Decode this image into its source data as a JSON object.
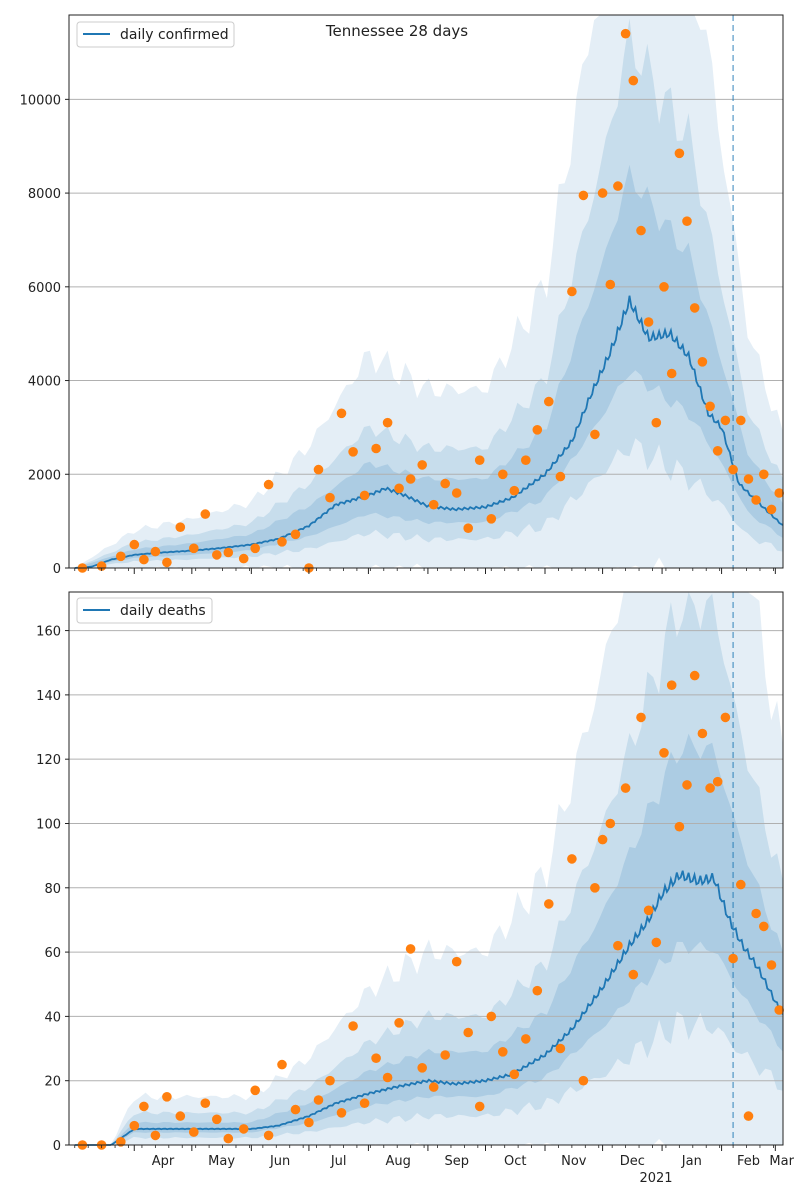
{
  "chart_data": [
    {
      "type": "line",
      "title": "Tennessee 28 days",
      "xlabel": "",
      "ylabel": "",
      "xlim": [
        "2020-02-27",
        "2021-03-05"
      ],
      "ylim": [
        0,
        11800
      ],
      "yticks": [
        0,
        2000,
        4000,
        6000,
        8000,
        10000
      ],
      "grid": "horizontal",
      "legend_position": "top-left",
      "forecast_marker_date": "2021-02-07",
      "colors": {
        "line": "#1f77b4",
        "band": "#1f77b4",
        "points": "#ff7f0e"
      },
      "series": [
        {
          "name": "daily confirmed",
          "kind": "line",
          "x": [
            "2020-03-01",
            "2020-03-10",
            "2020-03-20",
            "2020-04-01",
            "2020-04-15",
            "2020-05-01",
            "2020-05-15",
            "2020-06-01",
            "2020-06-15",
            "2020-07-01",
            "2020-07-15",
            "2020-08-01",
            "2020-08-10",
            "2020-08-20",
            "2020-09-01",
            "2020-09-15",
            "2020-10-01",
            "2020-10-15",
            "2020-11-01",
            "2020-11-15",
            "2020-11-25",
            "2020-12-05",
            "2020-12-15",
            "2020-12-25",
            "2021-01-05",
            "2021-01-15",
            "2021-01-25",
            "2021-02-01",
            "2021-02-10",
            "2021-02-20",
            "2021-03-05"
          ],
          "values": [
            0,
            30,
            180,
            280,
            330,
            370,
            420,
            500,
            620,
            900,
            1350,
            1550,
            1700,
            1550,
            1320,
            1250,
            1300,
            1500,
            2000,
            2700,
            3700,
            4600,
            5700,
            4900,
            5000,
            4500,
            3300,
            3000,
            1800,
            1400,
            900
          ]
        },
        {
          "name": "",
          "kind": "interval",
          "x": [
            "2020-03-01",
            "2020-04-01",
            "2020-05-01",
            "2020-06-01",
            "2020-07-01",
            "2020-08-01",
            "2020-09-01",
            "2020-10-01",
            "2020-11-01",
            "2020-12-01",
            "2020-12-15",
            "2021-01-01",
            "2021-01-15",
            "2021-02-01",
            "2021-02-15",
            "2021-03-05"
          ],
          "mid": [
            0,
            280,
            370,
            500,
            900,
            1550,
            1300,
            1300,
            2000,
            4400,
            5700,
            5000,
            4500,
            3000,
            1600,
            900
          ],
          "inner": [
            0,
            120,
            160,
            220,
            420,
            700,
            600,
            600,
            950,
            2100,
            2700,
            2400,
            2200,
            1400,
            800,
            450
          ],
          "middle": [
            0,
            260,
            340,
            460,
            900,
            1450,
            1250,
            1250,
            2000,
            4300,
            5600,
            5000,
            4700,
            3000,
            1700,
            950
          ],
          "outer": [
            0,
            520,
            680,
            900,
            1700,
            3000,
            2500,
            2500,
            4000,
            8500,
            11000,
            10000,
            9400,
            6000,
            3400,
            1900
          ]
        },
        {
          "name": "",
          "kind": "scatter",
          "x": [
            "2020-03-05",
            "2020-03-15",
            "2020-03-25",
            "2020-04-01",
            "2020-04-06",
            "2020-04-12",
            "2020-04-18",
            "2020-04-25",
            "2020-05-02",
            "2020-05-08",
            "2020-05-14",
            "2020-05-20",
            "2020-05-28",
            "2020-06-03",
            "2020-06-10",
            "2020-06-17",
            "2020-06-24",
            "2020-07-01",
            "2020-07-06",
            "2020-07-12",
            "2020-07-18",
            "2020-07-24",
            "2020-07-30",
            "2020-08-05",
            "2020-08-11",
            "2020-08-17",
            "2020-08-23",
            "2020-08-29",
            "2020-09-04",
            "2020-09-10",
            "2020-09-16",
            "2020-09-22",
            "2020-09-28",
            "2020-10-04",
            "2020-10-10",
            "2020-10-16",
            "2020-10-22",
            "2020-10-28",
            "2020-11-03",
            "2020-11-09",
            "2020-11-15",
            "2020-11-21",
            "2020-11-27",
            "2020-12-01",
            "2020-12-05",
            "2020-12-09",
            "2020-12-13",
            "2020-12-17",
            "2020-12-21",
            "2020-12-25",
            "2020-12-29",
            "2021-01-02",
            "2021-01-06",
            "2021-01-10",
            "2021-01-14",
            "2021-01-18",
            "2021-01-22",
            "2021-01-26",
            "2021-01-30",
            "2021-02-03",
            "2021-02-07",
            "2021-02-11",
            "2021-02-15",
            "2021-02-19",
            "2021-02-23",
            "2021-02-27",
            "2021-03-03"
          ],
          "values": [
            0,
            40,
            250,
            500,
            180,
            350,
            120,
            870,
            420,
            1150,
            280,
            330,
            200,
            420,
            1780,
            560,
            720,
            0,
            2100,
            1500,
            3300,
            2480,
            1550,
            2550,
            3100,
            1700,
            1900,
            2200,
            1350,
            1800,
            1600,
            850,
            2300,
            1050,
            2000,
            1650,
            2300,
            2950,
            3550,
            1950,
            5900,
            7950,
            2850,
            8000,
            6050,
            8150,
            11400,
            10400,
            7200,
            5250,
            3100,
            6000,
            4150,
            8850,
            7400,
            5550,
            4400,
            3450,
            2500,
            3150,
            2100,
            3150,
            1900,
            1450,
            2000,
            1250,
            1600
          ]
        }
      ]
    },
    {
      "type": "line",
      "title": "",
      "xlabel": "",
      "ylabel": "",
      "xlim": [
        "2020-02-27",
        "2021-03-05"
      ],
      "ylim": [
        0,
        172
      ],
      "yticks": [
        0,
        20,
        40,
        60,
        80,
        100,
        120,
        140,
        160
      ],
      "grid": "horizontal",
      "legend_position": "top-left",
      "forecast_marker_date": "2021-02-07",
      "x_tick_labels": [
        "Apr",
        "May",
        "Jun",
        "Jul",
        "Aug",
        "Sep",
        "Oct",
        "Nov",
        "Dec",
        "Jan",
        "Feb",
        "Mar"
      ],
      "x_tick_dates": [
        "2020-04-01",
        "2020-05-01",
        "2020-06-01",
        "2020-07-01",
        "2020-08-01",
        "2020-09-01",
        "2020-10-01",
        "2020-11-01",
        "2020-12-01",
        "2021-01-01",
        "2021-02-01",
        "2021-03-01"
      ],
      "year_label": "2021",
      "colors": {
        "line": "#1f77b4",
        "band": "#1f77b4",
        "points": "#ff7f0e"
      },
      "series": [
        {
          "name": "daily deaths",
          "kind": "line",
          "x": [
            "2020-03-01",
            "2020-03-20",
            "2020-04-01",
            "2020-04-15",
            "2020-05-01",
            "2020-05-15",
            "2020-06-01",
            "2020-06-15",
            "2020-07-01",
            "2020-07-15",
            "2020-08-01",
            "2020-08-15",
            "2020-09-01",
            "2020-09-15",
            "2020-10-01",
            "2020-10-15",
            "2020-11-01",
            "2020-11-15",
            "2020-12-01",
            "2020-12-15",
            "2020-12-25",
            "2021-01-01",
            "2021-01-10",
            "2021-01-20",
            "2021-01-28",
            "2021-02-05",
            "2021-02-12",
            "2021-02-20",
            "2021-03-05"
          ],
          "values": [
            0,
            0,
            5,
            5,
            5,
            5,
            5,
            6,
            9,
            13,
            16,
            18,
            20,
            19,
            20,
            22,
            28,
            36,
            49,
            62,
            70,
            78,
            84,
            82,
            83,
            70,
            62,
            55,
            40
          ]
        },
        {
          "name": "",
          "kind": "interval",
          "x": [
            "2020-03-01",
            "2020-03-20",
            "2020-04-01",
            "2020-05-01",
            "2020-06-01",
            "2020-07-01",
            "2020-08-01",
            "2020-09-01",
            "2020-10-01",
            "2020-11-01",
            "2020-12-01",
            "2020-12-20",
            "2021-01-10",
            "2021-01-28",
            "2021-02-10",
            "2021-03-05"
          ],
          "mid": [
            0,
            0,
            5,
            5,
            5,
            9,
            16,
            20,
            20,
            28,
            49,
            66,
            84,
            83,
            65,
            40
          ],
          "inner": [
            0,
            0,
            2,
            2,
            2,
            4,
            7,
            9,
            9,
            13,
            23,
            31,
            40,
            40,
            31,
            19
          ],
          "middle": [
            0,
            0,
            5,
            5,
            5,
            9,
            16,
            20,
            20,
            28,
            50,
            66,
            84,
            84,
            65,
            40
          ],
          "outer": [
            0,
            0,
            10,
            10,
            10,
            18,
            32,
            40,
            40,
            56,
            98,
            135,
            170,
            170,
            130,
            80
          ]
        },
        {
          "name": "",
          "kind": "scatter",
          "x": [
            "2020-03-05",
            "2020-03-15",
            "2020-03-25",
            "2020-04-01",
            "2020-04-06",
            "2020-04-12",
            "2020-04-18",
            "2020-04-25",
            "2020-05-02",
            "2020-05-08",
            "2020-05-14",
            "2020-05-20",
            "2020-05-28",
            "2020-06-03",
            "2020-06-10",
            "2020-06-17",
            "2020-06-24",
            "2020-07-01",
            "2020-07-06",
            "2020-07-12",
            "2020-07-18",
            "2020-07-24",
            "2020-07-30",
            "2020-08-05",
            "2020-08-11",
            "2020-08-17",
            "2020-08-23",
            "2020-08-29",
            "2020-09-04",
            "2020-09-10",
            "2020-09-16",
            "2020-09-22",
            "2020-09-28",
            "2020-10-04",
            "2020-10-10",
            "2020-10-16",
            "2020-10-22",
            "2020-10-28",
            "2020-11-03",
            "2020-11-09",
            "2020-11-15",
            "2020-11-21",
            "2020-11-27",
            "2020-12-01",
            "2020-12-05",
            "2020-12-09",
            "2020-12-13",
            "2020-12-17",
            "2020-12-21",
            "2020-12-25",
            "2020-12-29",
            "2021-01-02",
            "2021-01-06",
            "2021-01-10",
            "2021-01-14",
            "2021-01-18",
            "2021-01-22",
            "2021-01-26",
            "2021-01-30",
            "2021-02-03",
            "2021-02-07",
            "2021-02-11",
            "2021-02-15",
            "2021-02-19",
            "2021-02-23",
            "2021-02-27",
            "2021-03-03"
          ],
          "values": [
            0,
            0,
            1,
            6,
            12,
            3,
            15,
            9,
            4,
            13,
            8,
            2,
            5,
            17,
            3,
            25,
            11,
            7,
            14,
            20,
            10,
            37,
            13,
            27,
            21,
            38,
            61,
            24,
            18,
            28,
            57,
            35,
            12,
            40,
            29,
            22,
            33,
            48,
            75,
            30,
            89,
            20,
            80,
            95,
            100,
            62,
            111,
            53,
            133,
            73,
            63,
            122,
            143,
            99,
            112,
            146,
            128,
            111,
            113,
            133,
            58,
            81,
            9,
            72,
            68,
            56,
            42
          ]
        }
      ]
    }
  ]
}
